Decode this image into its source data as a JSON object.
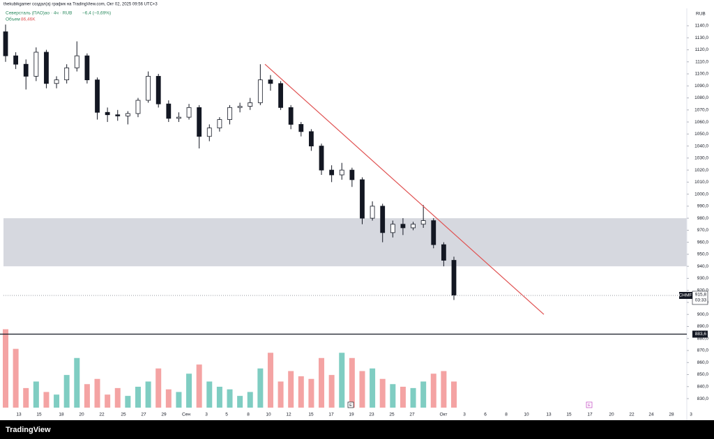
{
  "header": {
    "author_line": "thekubikgamer создал(а) график на TradingView.com, Окт 02, 2025 09:56 UTC+3"
  },
  "chart_data": {
    "type": "candlestick",
    "symbol_line": "Северсталь (ПАО)ао · 4ч · RUB",
    "change": "−6,4 (−0,69%)",
    "volume_label": "Объем",
    "volume_value": "86,46K",
    "currency": "RUB",
    "x_axis_labels": [
      "13",
      "15",
      "18",
      "20",
      "22",
      "25",
      "27",
      "29",
      "Сен",
      "3",
      "5",
      "8",
      "10",
      "12",
      "15",
      "17",
      "19",
      "23",
      "25",
      "27",
      "Окт",
      "3",
      "6",
      "8",
      "10",
      "13",
      "15",
      "17",
      "20",
      "22",
      "24",
      "28",
      "3"
    ],
    "open": [
      1135,
      1115,
      1108,
      1098,
      1118,
      1092,
      1095,
      1105,
      1115,
      1095,
      1068,
      1066,
      1065,
      1067,
      1078,
      1098,
      1075,
      1063,
      1064,
      1072,
      1048,
      1055,
      1062,
      1072,
      1073,
      1076,
      1095,
      1092,
      1072,
      1058,
      1052,
      1040,
      1020,
      1016,
      1020,
      1012,
      980,
      990,
      968,
      975,
      972,
      975,
      978,
      958,
      945
    ],
    "high": [
      1141,
      1118,
      1112,
      1122,
      1120,
      1098,
      1108,
      1127,
      1117,
      1097,
      1072,
      1070,
      1069,
      1080,
      1102,
      1100,
      1078,
      1068,
      1075,
      1074,
      1058,
      1064,
      1074,
      1076,
      1080,
      1108,
      1099,
      1094,
      1074,
      1060,
      1054,
      1042,
      1024,
      1026,
      1022,
      1014,
      994,
      992,
      978,
      980,
      977,
      991,
      980,
      960,
      948
    ],
    "low": [
      1110,
      1104,
      1087,
      1094,
      1088,
      1088,
      1092,
      1102,
      1092,
      1062,
      1060,
      1061,
      1058,
      1064,
      1076,
      1072,
      1060,
      1060,
      1062,
      1038,
      1044,
      1052,
      1058,
      1068,
      1070,
      1074,
      1086,
      1070,
      1054,
      1048,
      1036,
      1016,
      1010,
      1012,
      1006,
      975,
      978,
      960,
      964,
      966,
      970,
      972,
      955,
      940,
      912
    ],
    "close": [
      1115,
      1108,
      1098,
      1118,
      1092,
      1095,
      1105,
      1115,
      1095,
      1068,
      1066,
      1065,
      1067,
      1078,
      1098,
      1075,
      1063,
      1064,
      1072,
      1048,
      1055,
      1062,
      1072,
      1073,
      1076,
      1095,
      1092,
      1072,
      1058,
      1052,
      1040,
      1020,
      1016,
      1020,
      1012,
      980,
      990,
      968,
      975,
      972,
      975,
      978,
      958,
      945,
      916
    ],
    "volume": [
      600,
      450,
      150,
      200,
      120,
      100,
      250,
      380,
      180,
      220,
      100,
      150,
      90,
      160,
      200,
      300,
      140,
      120,
      260,
      330,
      200,
      160,
      140,
      90,
      120,
      300,
      420,
      200,
      280,
      240,
      220,
      380,
      250,
      420,
      380,
      280,
      300,
      220,
      180,
      160,
      150,
      200,
      260,
      280,
      200
    ],
    "vlim": [
      0,
      800
    ],
    "up_color": "#ffffff",
    "down_color": "#131722",
    "volume_up_color": "#7fcdc2",
    "volume_down_color": "#f4a3a3",
    "ylim": [
      819.6,
      1153.3
    ],
    "yticks": [
      {
        "value": 830,
        "label": "830,0"
      },
      {
        "value": 840,
        "label": "840,0"
      },
      {
        "value": 850,
        "label": "850,0"
      },
      {
        "value": 860,
        "label": "860,0"
      },
      {
        "value": 870,
        "label": "870,0"
      },
      {
        "value": 880,
        "label": "880,0"
      },
      {
        "value": 890,
        "label": "890,0"
      },
      {
        "value": 900,
        "label": "900,0"
      },
      {
        "value": 910,
        "label": "910,0"
      },
      {
        "value": 920,
        "label": "920,0"
      },
      {
        "value": 930,
        "label": "930,0"
      },
      {
        "value": 940,
        "label": "940,0"
      },
      {
        "value": 950,
        "label": "950,0"
      },
      {
        "value": 960,
        "label": "960,0"
      },
      {
        "value": 970,
        "label": "970,0"
      },
      {
        "value": 980,
        "label": "980,0"
      },
      {
        "value": 990,
        "label": "990,0"
      },
      {
        "value": 1000,
        "label": "1000,0"
      },
      {
        "value": 1010,
        "label": "1010,0"
      },
      {
        "value": 1020,
        "label": "1020,0"
      },
      {
        "value": 1030,
        "label": "1030,0"
      },
      {
        "value": 1040,
        "label": "1040,0"
      },
      {
        "value": 1050,
        "label": "1050,0"
      },
      {
        "value": 1060,
        "label": "1060,0"
      },
      {
        "value": 1070,
        "label": "1070,0"
      },
      {
        "value": 1080,
        "label": "1080,0"
      },
      {
        "value": 1090,
        "label": "1090,0"
      },
      {
        "value": 1100,
        "label": "1100,0"
      },
      {
        "value": 1110,
        "label": "1110,0"
      },
      {
        "value": 1120,
        "label": "1120,0"
      },
      {
        "value": 1130,
        "label": "1130,0"
      },
      {
        "value": 1140,
        "label": "1140,0"
      }
    ],
    "zone": [
      940,
      980
    ],
    "zone_color": "#d1d4dc",
    "trendline": [
      1108,
      900
    ],
    "trendline_color": "#e05252",
    "level": {
      "value": 883.6,
      "label": "883,6"
    },
    "last_price": {
      "value": 915.8,
      "label": "915,8",
      "ticker": "CHMF",
      "timer": "03:33"
    },
    "events": [
      "E",
      "E"
    ]
  },
  "footer": {
    "brand": "TradingView"
  }
}
